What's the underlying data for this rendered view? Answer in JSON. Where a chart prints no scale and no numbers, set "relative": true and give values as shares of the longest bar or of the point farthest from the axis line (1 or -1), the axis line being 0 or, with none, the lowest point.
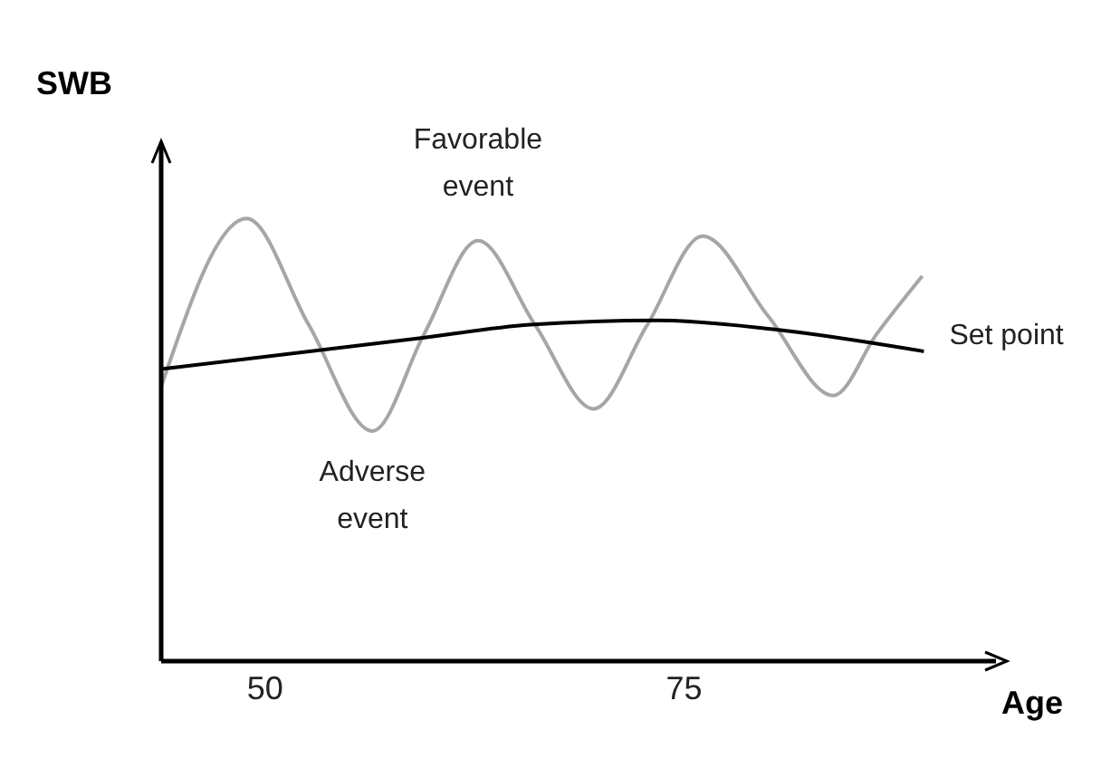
{
  "chart_data": {
    "type": "line",
    "relative": true,
    "xlabel": "Age",
    "ylabel": "SWB",
    "xlim": [
      43.8,
      93.6
    ],
    "xticks": [
      50,
      75
    ],
    "grid": false,
    "marker": "none",
    "line_style": "solid",
    "series": [
      {
        "color": "#a6a6a6",
        "x": [
          43.8,
          48.9,
          52.6,
          56.4,
          59.5,
          62.7,
          66.1,
          69.6,
          72.8,
          76.1,
          80,
          83.9,
          86.5,
          89.2
        ],
        "values": [
          0.62,
          1,
          0.76,
          0.52,
          0.74,
          0.95,
          0.76,
          0.57,
          0.76,
          0.96,
          0.78,
          0.6,
          0.74,
          0.87
        ]
      },
      {
        "name": "Set point",
        "color": "#000000",
        "x": [
          43.8,
          59.3,
          65.8,
          73.4,
          80.3,
          89.3
        ],
        "values": [
          0.66,
          0.73,
          0.76,
          0.77,
          0.75,
          0.7
        ]
      }
    ],
    "annotations": [
      {
        "text": "Favorable event",
        "x": 62.7,
        "y": 0.95
      },
      {
        "text": "Adverse event",
        "x": 56.4,
        "y": 0.52
      }
    ]
  }
}
